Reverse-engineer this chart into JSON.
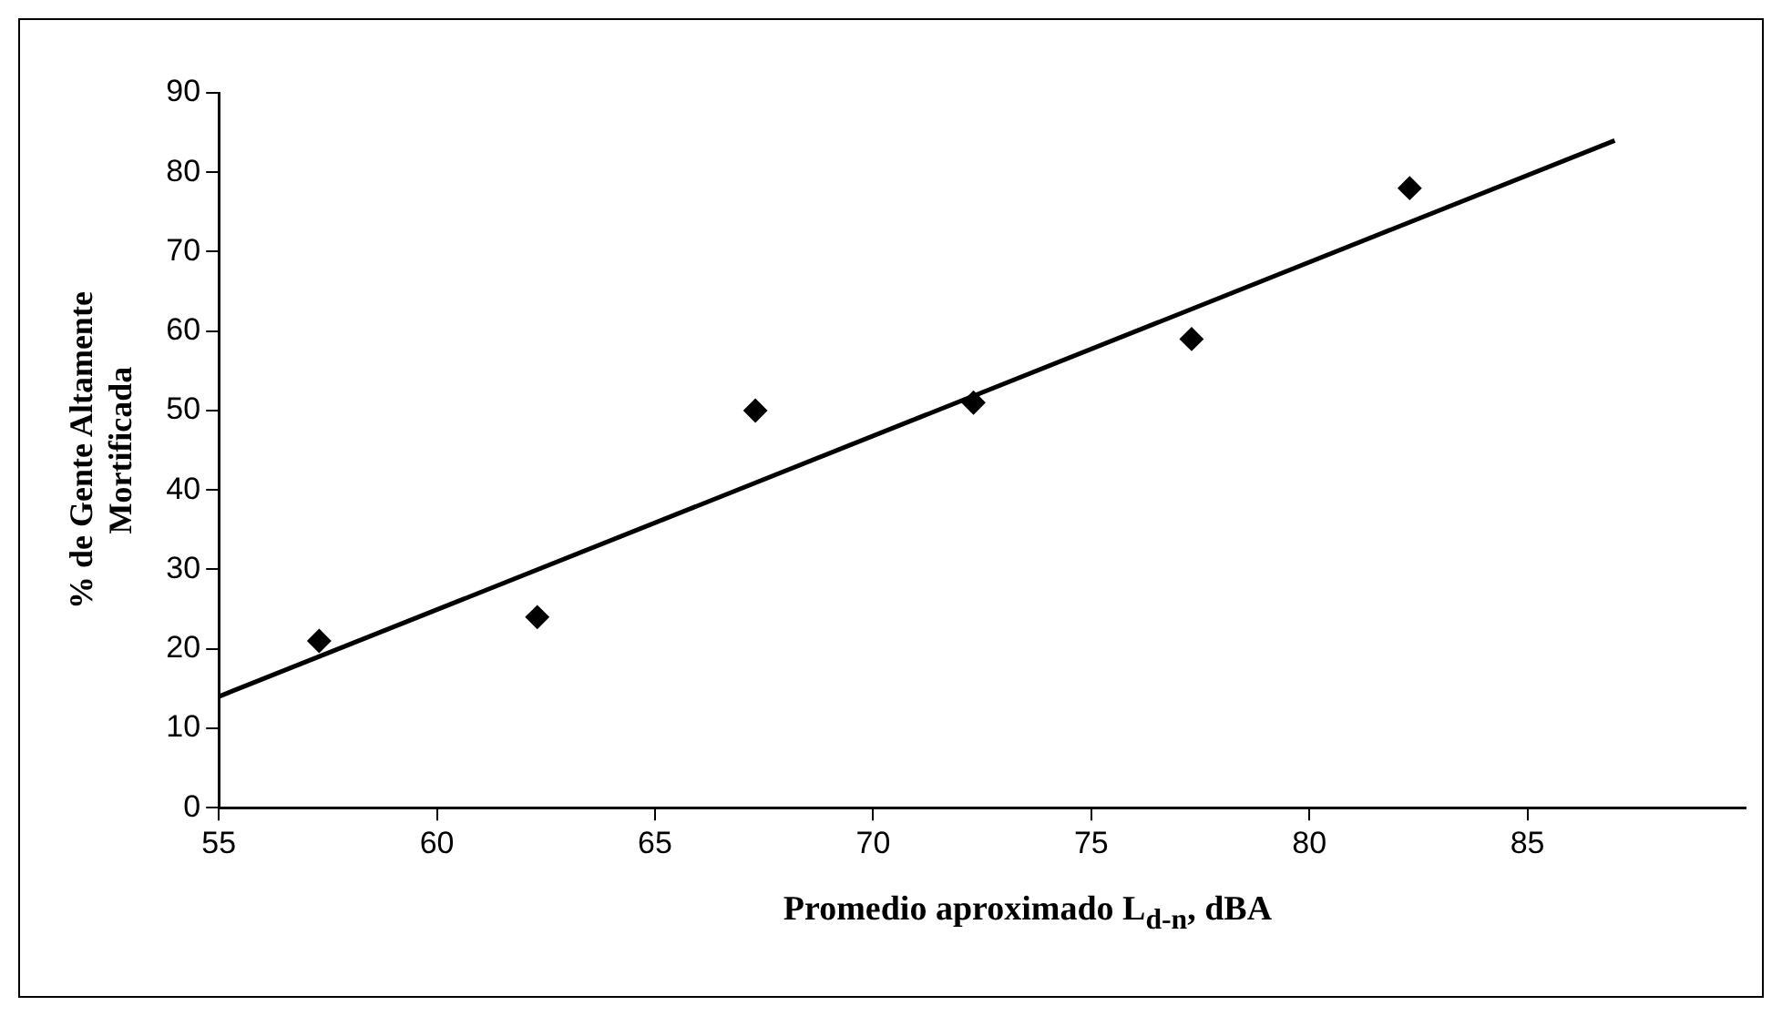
{
  "chart_data": {
    "type": "scatter",
    "xlabel": "Promedio aproximado L$_{d-n}$, dBA",
    "ylabel": "% de Gente Altamente\nMortificada",
    "xlim": [
      55,
      90
    ],
    "xticks": [
      55,
      60,
      65,
      70,
      75,
      80,
      85
    ],
    "ylim": [
      0,
      90
    ],
    "yticks": [
      0,
      10,
      20,
      30,
      40,
      50,
      60,
      70,
      80,
      90
    ],
    "grid": false,
    "legend": false,
    "series": [
      {
        "color": "#000000",
        "marker": "diamond",
        "x": [
          57.3,
          62.3,
          67.3,
          72.3,
          77.3,
          82.3
        ],
        "values": [
          21,
          24,
          50,
          51,
          59,
          78
        ]
      },
      {
        "type": "line",
        "color": "#000000",
        "marker": "none",
        "line_style": "solid",
        "x": [
          55,
          87
        ],
        "values": [
          14,
          84
        ]
      }
    ]
  }
}
